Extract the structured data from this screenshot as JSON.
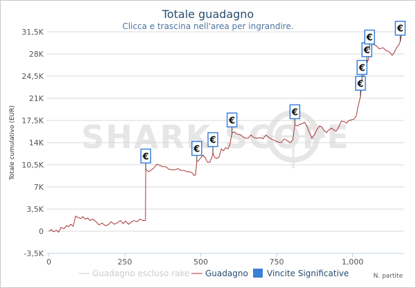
{
  "chart_data": {
    "type": "line",
    "title": "Totale guadagno",
    "subtitle": "Clicca e trascina nell'area per ingrandire.",
    "ylabel": "Totale cumulativo (EUR)",
    "xlabel": "N. partite",
    "watermark": "SHARK SCOPE",
    "xlim": [
      -8,
      1170
    ],
    "ylim": [
      -3500,
      31500
    ],
    "xticks": [
      0,
      250,
      500,
      750,
      1000
    ],
    "xtick_labels": [
      "0",
      "250",
      "500",
      "750",
      "1,000"
    ],
    "yticks": [
      -3500,
      0,
      3500,
      7000,
      10500,
      14000,
      17500,
      21000,
      24500,
      28000,
      31500
    ],
    "ytick_labels": [
      "-3,5K",
      "0",
      "3,5K",
      "7K",
      "10,5K",
      "14K",
      "17,5K",
      "21K",
      "24,5K",
      "28K",
      "31,5K"
    ],
    "grid": "horizontal",
    "legend_position": "bottom",
    "series": [
      {
        "name": "Guadagno escluso rake",
        "color": "#cccccc",
        "hidden": true,
        "points": []
      },
      {
        "name": "Guadagno",
        "color": "#aa3333",
        "points": [
          [
            0,
            0
          ],
          [
            8,
            250
          ],
          [
            15,
            -100
          ],
          [
            25,
            150
          ],
          [
            32,
            -150
          ],
          [
            40,
            600
          ],
          [
            50,
            400
          ],
          [
            58,
            900
          ],
          [
            65,
            700
          ],
          [
            72,
            1100
          ],
          [
            80,
            800
          ],
          [
            88,
            2400
          ],
          [
            95,
            2200
          ],
          [
            105,
            2000
          ],
          [
            112,
            2300
          ],
          [
            120,
            1900
          ],
          [
            128,
            2100
          ],
          [
            135,
            1700
          ],
          [
            145,
            1900
          ],
          [
            155,
            1500
          ],
          [
            165,
            1000
          ],
          [
            175,
            1300
          ],
          [
            185,
            900
          ],
          [
            195,
            1000
          ],
          [
            205,
            1500
          ],
          [
            215,
            1100
          ],
          [
            225,
            1300
          ],
          [
            235,
            1700
          ],
          [
            245,
            1200
          ],
          [
            252,
            1600
          ],
          [
            262,
            1100
          ],
          [
            270,
            1400
          ],
          [
            280,
            1700
          ],
          [
            290,
            1500
          ],
          [
            300,
            1900
          ],
          [
            310,
            1700
          ],
          [
            318,
            1700
          ],
          [
            319,
            9800
          ],
          [
            328,
            9400
          ],
          [
            338,
            9700
          ],
          [
            348,
            10100
          ],
          [
            355,
            10600
          ],
          [
            365,
            10400
          ],
          [
            375,
            10200
          ],
          [
            385,
            10200
          ],
          [
            395,
            9800
          ],
          [
            405,
            9700
          ],
          [
            415,
            9700
          ],
          [
            425,
            9900
          ],
          [
            435,
            9600
          ],
          [
            445,
            9600
          ],
          [
            455,
            9400
          ],
          [
            465,
            9400
          ],
          [
            472,
            9200
          ],
          [
            478,
            8800
          ],
          [
            483,
            8900
          ],
          [
            487,
            11000
          ],
          [
            492,
            11100
          ],
          [
            500,
            11600
          ],
          [
            508,
            12000
          ],
          [
            515,
            11600
          ],
          [
            522,
            10900
          ],
          [
            530,
            10900
          ],
          [
            537,
            11700
          ],
          [
            540,
            12400
          ],
          [
            545,
            11700
          ],
          [
            552,
            11500
          ],
          [
            560,
            11700
          ],
          [
            568,
            13000
          ],
          [
            575,
            12700
          ],
          [
            582,
            13200
          ],
          [
            590,
            13000
          ],
          [
            596,
            13700
          ],
          [
            603,
            15500
          ],
          [
            610,
            15700
          ],
          [
            618,
            15400
          ],
          [
            625,
            15300
          ],
          [
            632,
            15200
          ],
          [
            640,
            14900
          ],
          [
            648,
            14700
          ],
          [
            656,
            14700
          ],
          [
            665,
            15200
          ],
          [
            675,
            14800
          ],
          [
            685,
            14700
          ],
          [
            695,
            14800
          ],
          [
            705,
            14600
          ],
          [
            715,
            15200
          ],
          [
            725,
            14800
          ],
          [
            735,
            14500
          ],
          [
            745,
            14300
          ],
          [
            755,
            14100
          ],
          [
            765,
            14000
          ],
          [
            775,
            14600
          ],
          [
            785,
            14300
          ],
          [
            795,
            14000
          ],
          [
            803,
            14400
          ],
          [
            810,
            16800
          ],
          [
            818,
            16600
          ],
          [
            826,
            16900
          ],
          [
            834,
            17000
          ],
          [
            842,
            17200
          ],
          [
            850,
            16600
          ],
          [
            858,
            15600
          ],
          [
            866,
            14700
          ],
          [
            875,
            15300
          ],
          [
            883,
            16100
          ],
          [
            891,
            16600
          ],
          [
            898,
            16500
          ],
          [
            906,
            15900
          ],
          [
            914,
            15600
          ],
          [
            922,
            16000
          ],
          [
            930,
            16300
          ],
          [
            938,
            16000
          ],
          [
            946,
            15800
          ],
          [
            955,
            16500
          ],
          [
            963,
            17400
          ],
          [
            972,
            17300
          ],
          [
            980,
            17100
          ],
          [
            988,
            17500
          ],
          [
            996,
            17600
          ],
          [
            1004,
            17700
          ],
          [
            1012,
            18200
          ],
          [
            1018,
            19700
          ],
          [
            1022,
            20500
          ],
          [
            1026,
            21300
          ],
          [
            1031,
            23800
          ],
          [
            1035,
            24000
          ],
          [
            1039,
            25700
          ],
          [
            1043,
            25600
          ],
          [
            1047,
            26600
          ],
          [
            1052,
            27100
          ],
          [
            1056,
            28600
          ],
          [
            1060,
            30500
          ],
          [
            1068,
            29500
          ],
          [
            1078,
            29300
          ],
          [
            1088,
            28800
          ],
          [
            1100,
            29000
          ],
          [
            1112,
            28500
          ],
          [
            1122,
            28300
          ],
          [
            1130,
            27800
          ],
          [
            1138,
            28300
          ],
          [
            1145,
            29000
          ],
          [
            1152,
            29400
          ],
          [
            1157,
            30000
          ],
          [
            1163,
            31300
          ]
        ]
      }
    ],
    "significant_wins": {
      "name": "Vincite Significative",
      "color": "#3a7fd8",
      "symbol": "€",
      "points": [
        [
          319,
          9800
        ],
        [
          487,
          11000
        ],
        [
          540,
          12400
        ],
        [
          603,
          15500
        ],
        [
          810,
          16800
        ],
        [
          1026,
          21300
        ],
        [
          1031,
          23800
        ],
        [
          1047,
          26600
        ],
        [
          1056,
          28600
        ],
        [
          1157,
          30000
        ]
      ]
    }
  }
}
